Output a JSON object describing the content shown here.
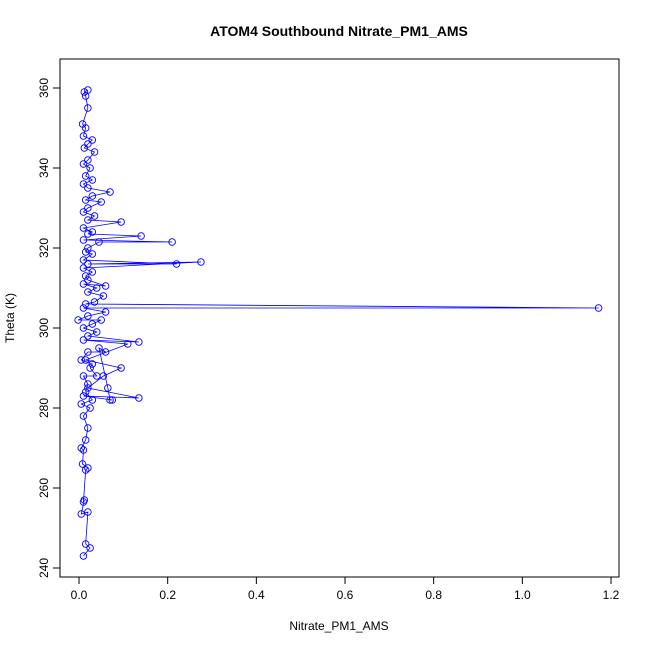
{
  "chart_data": {
    "type": "line",
    "title": "ATOM4 Southbound Nitrate_PM1_AMS",
    "x_label": "Nitrate_PM1_AMS",
    "y_label": "Theta (K)",
    "color": "#0000ff",
    "markers": true,
    "x": [
      0.01,
      0.025,
      0.015,
      0.02,
      0.005,
      0.012,
      0.01,
      0.015,
      0.02,
      0.008,
      0.01,
      0.005,
      0.015,
      0.02,
      0.01,
      0.025,
      0.005,
      0.03,
      0.015,
      0.02,
      0.01,
      0.04,
      0.025,
      0.03,
      0.005,
      0.02,
      0.06,
      0.045,
      0.065,
      0.07,
      0.075,
      0.01,
      0.135,
      0.02,
      0.055,
      0.095,
      0.015,
      0.11,
      0.01,
      0.135,
      0.02,
      0.04,
      0.01,
      0.03,
      0.05,
      -0.002,
      0.02,
      0.06,
      0.01,
      1.172,
      0.015,
      0.035,
      0.055,
      0.02,
      0.04,
      0.01,
      0.06,
      0.02,
      0.015,
      0.03,
      0.01,
      0.275,
      0.02,
      0.22,
      0.01,
      0.03,
      0.015,
      0.02,
      0.045,
      0.21,
      0.01,
      0.14,
      0.02,
      0.03,
      0.01,
      0.095,
      0.02,
      0.035,
      0.01,
      0.02,
      0.05,
      0.015,
      0.03,
      0.07,
      0.02,
      0.01,
      0.03,
      0.015,
      0.025,
      0.01,
      0.02,
      0.035,
      0.012,
      0.02,
      0.03,
      0.01,
      0.015,
      0.008,
      0.02,
      0.015,
      0.012,
      0.02
    ],
    "values": [
      243,
      245,
      246,
      254,
      253.5,
      257,
      256.5,
      264.5,
      265,
      266,
      269.5,
      270,
      272,
      275,
      278,
      280,
      281,
      282,
      284,
      286,
      288,
      288,
      290,
      291,
      292,
      294,
      294,
      295,
      285,
      282,
      282,
      283,
      282.5,
      285,
      288,
      290,
      292,
      296,
      297,
      296.5,
      298,
      299,
      300,
      301,
      302,
      302,
      303,
      304,
      305,
      305,
      306,
      306.5,
      308,
      309,
      310,
      311,
      310.5,
      312,
      313,
      314,
      315,
      316.5,
      316,
      316,
      317,
      318.5,
      319,
      320,
      321.5,
      321.5,
      322,
      323,
      323.5,
      324,
      325,
      326.5,
      327,
      328,
      329,
      330,
      331.5,
      332,
      333,
      334,
      335,
      336,
      337,
      338,
      340,
      341,
      342,
      344,
      345,
      346,
      347,
      348,
      350,
      351,
      355,
      358,
      359,
      359.5
    ],
    "xlim": [
      -0.0429,
      1.218
    ],
    "ylim": [
      237.75,
      367.25
    ],
    "xticks": [
      {
        "value": 0,
        "label": "0.0"
      },
      0.2,
      0.4,
      0.6,
      0.8,
      {
        "value": 1,
        "label": "1.0"
      },
      1.2
    ],
    "yticks": [
      240,
      260,
      280,
      300,
      320,
      340,
      360
    ]
  }
}
